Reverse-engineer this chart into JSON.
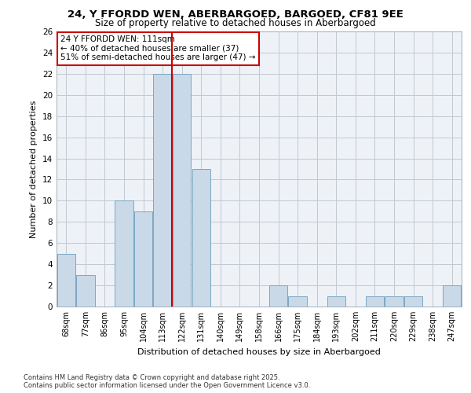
{
  "title1": "24, Y FFORDD WEN, ABERBARGOED, BARGOED, CF81 9EE",
  "title2": "Size of property relative to detached houses in Aberbargoed",
  "xlabel": "Distribution of detached houses by size in Aberbargoed",
  "ylabel": "Number of detached properties",
  "categories": [
    "68sqm",
    "77sqm",
    "86sqm",
    "95sqm",
    "104sqm",
    "113sqm",
    "122sqm",
    "131sqm",
    "140sqm",
    "149sqm",
    "158sqm",
    "166sqm",
    "175sqm",
    "184sqm",
    "193sqm",
    "202sqm",
    "211sqm",
    "220sqm",
    "229sqm",
    "238sqm",
    "247sqm"
  ],
  "values": [
    5,
    3,
    0,
    10,
    9,
    22,
    22,
    13,
    0,
    0,
    0,
    2,
    1,
    0,
    1,
    0,
    1,
    1,
    1,
    0,
    2
  ],
  "bar_color": "#c9d9e8",
  "bar_edge_color": "#7ba7c4",
  "red_line_x": 5.5,
  "annotation_text": "24 Y FFORDD WEN: 111sqm\n← 40% of detached houses are smaller (37)\n51% of semi-detached houses are larger (47) →",
  "annotation_box_color": "#ffffff",
  "annotation_box_edge": "#cc0000",
  "ylim": [
    0,
    26
  ],
  "yticks": [
    0,
    2,
    4,
    6,
    8,
    10,
    12,
    14,
    16,
    18,
    20,
    22,
    24,
    26
  ],
  "grid_color": "#c0c8d0",
  "bg_color": "#eef2f7",
  "footer_line1": "Contains HM Land Registry data © Crown copyright and database right 2025.",
  "footer_line2": "Contains public sector information licensed under the Open Government Licence v3.0."
}
